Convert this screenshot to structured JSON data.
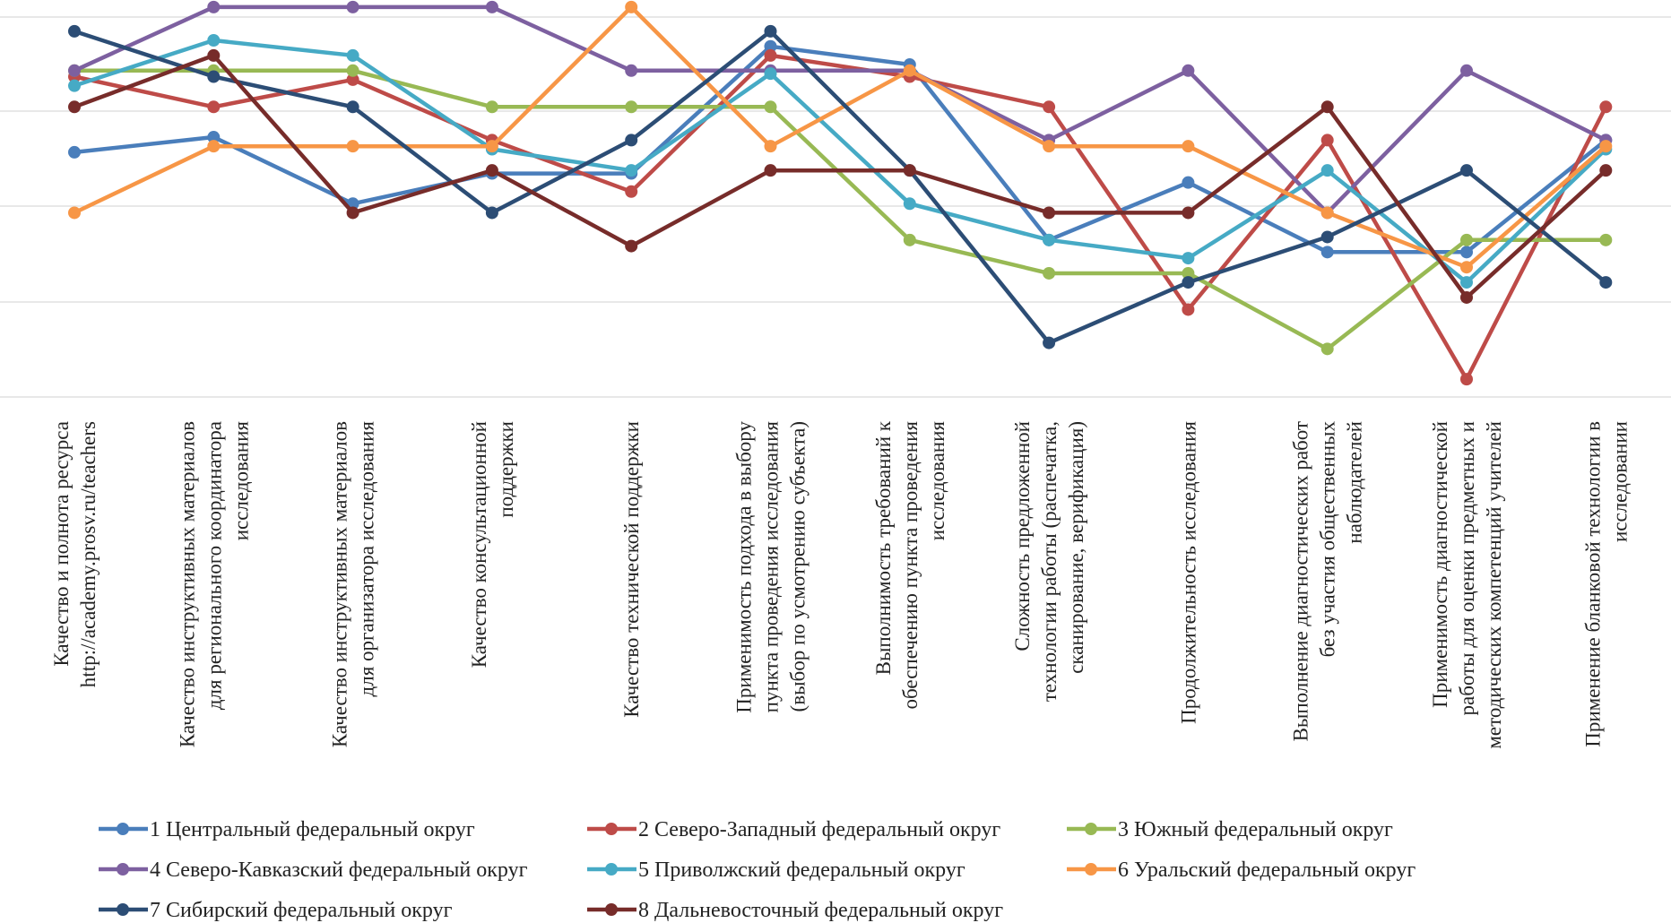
{
  "chart_data": {
    "type": "line",
    "title": "",
    "xlabel": "",
    "ylabel": "",
    "ylim": [
      3.1,
      4.35
    ],
    "grid": "horizontal",
    "legend_position": "bottom",
    "categories": [
      [
        "Качество и полнота ресурса",
        "http://academy.prosv.ru/teachers"
      ],
      [
        "Качество инструктивных  материалов",
        "для регионального координатора",
        "исследования"
      ],
      [
        "Качество инструктивных материалов",
        "для организатора исследования"
      ],
      [
        "Качество консультационной",
        "поддержки"
      ],
      [
        "Качество технической поддержки"
      ],
      [
        "Применимость подхода в выбору",
        "пункта проведения исследования",
        "(выбор по усмотрению  субъекта)"
      ],
      [
        "Выполнимость требований к",
        "обеспечению пункта проведения",
        "исследования"
      ],
      [
        "Сложность предложенной",
        "технологии работы (распечатка,",
        "сканирование,  верификация)"
      ],
      [
        "Продолжительность исследования"
      ],
      [
        "Выполнение диагностических работ",
        "без участия  общественных",
        "наблюдателей"
      ],
      [
        "Применимость диагностической",
        "работы для оценки предметных и",
        "методических компетенций учителей"
      ],
      [
        "Применение бланковой технологии в",
        "исследовании"
      ]
    ],
    "series": [
      {
        "name": "1 Центральный федеральный округ",
        "color": "#4a7ebb",
        "values": [
          3.9,
          3.95,
          3.73,
          3.83,
          3.83,
          4.25,
          4.19,
          3.61,
          3.8,
          3.57,
          3.57,
          3.94
        ]
      },
      {
        "name": "2 Северо-Западный федеральный округ",
        "color": "#be4b48",
        "values": [
          4.15,
          4.05,
          4.14,
          3.94,
          3.77,
          4.22,
          4.15,
          4.05,
          3.38,
          3.94,
          3.15,
          4.05
        ]
      },
      {
        "name": "3 Южный федеральный округ",
        "color": "#98b954",
        "values": [
          4.17,
          4.17,
          4.17,
          4.05,
          4.05,
          4.05,
          3.61,
          3.5,
          3.5,
          3.25,
          3.61,
          3.61
        ]
      },
      {
        "name": "4 Северо-Кавказский федеральный округ",
        "color": "#7d60a0",
        "values": [
          4.17,
          4.38,
          4.38,
          4.38,
          4.17,
          4.17,
          4.17,
          3.94,
          4.17,
          3.7,
          4.17,
          3.94
        ]
      },
      {
        "name": "5 Приволжский федеральный округ",
        "color": "#46aac5",
        "values": [
          4.12,
          4.27,
          4.22,
          3.91,
          3.84,
          4.16,
          3.73,
          3.61,
          3.55,
          3.84,
          3.47,
          3.91
        ]
      },
      {
        "name": "6 Уральский федеральный округ",
        "color": "#f79646",
        "values": [
          3.7,
          3.92,
          3.92,
          3.92,
          4.38,
          3.92,
          4.17,
          3.92,
          3.92,
          3.7,
          3.52,
          3.92
        ]
      },
      {
        "name": "7 Сибирский федеральный округ",
        "color": "#2c4d75",
        "values": [
          4.3,
          4.15,
          4.05,
          3.7,
          3.94,
          4.3,
          3.84,
          3.27,
          3.47,
          3.62,
          3.84,
          3.47
        ]
      },
      {
        "name": "8 Дальневосточный федеральный округ",
        "color": "#772c2a",
        "values": [
          4.05,
          4.22,
          3.7,
          3.84,
          3.59,
          3.84,
          3.84,
          3.7,
          3.7,
          4.05,
          3.42,
          3.84
        ]
      }
    ]
  }
}
